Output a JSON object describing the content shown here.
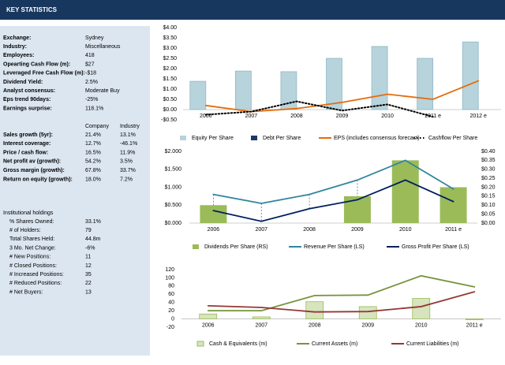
{
  "header": {
    "title": "KEY STATISTICS"
  },
  "stats": [
    {
      "label": "Exchange:",
      "value": "Sydney"
    },
    {
      "label": "Industry:",
      "value": "Miscellaneous"
    },
    {
      "label": "Employees:",
      "value": "418"
    },
    {
      "label": "Opearting Cash Flow (m):",
      "value": "$27"
    },
    {
      "label": "Leveraged Free Cash Flow (m):",
      "value": "-$18"
    },
    {
      "label": "Dividend Yield:",
      "value": "2.5%"
    },
    {
      "label": "Analyst consensus:",
      "value": "Moderate Buy"
    },
    {
      "label": "Eps trend 90days:",
      "value": "-25%"
    },
    {
      "label": "Earnings surprise:",
      "value": "118.1%"
    }
  ],
  "comparison": {
    "columns": [
      "Company",
      "Industry"
    ],
    "rows": [
      {
        "label": "Sales growth (5yr):",
        "company": "21.4%",
        "industry": "13.1%"
      },
      {
        "label": "Interest coverage:",
        "company": "12.7%",
        "industry": "-46.1%"
      },
      {
        "label": "Price / cash flow:",
        "company": "16.5%",
        "industry": "11.9%"
      },
      {
        "label": "Net profit av (growth):",
        "company": "54.2%",
        "industry": "3.5%"
      },
      {
        "label": "Gross margin (growth):",
        "company": "67.8%",
        "industry": "33.7%"
      },
      {
        "label": "Return on equity (growth):",
        "company": "18.0%",
        "industry": "7.2%"
      }
    ]
  },
  "holdings": {
    "title": "Institutional holdings",
    "rows": [
      {
        "label": "% Shares Owned:",
        "value": "33.1%"
      },
      {
        "label": "# of Holders:",
        "value": "79"
      },
      {
        "label": "Total Shares Held:",
        "value": "44.8m"
      },
      {
        "label": "3 Mo. Net Change:",
        "value": "-6%"
      },
      {
        "label": "# New Positions:",
        "value": "11"
      },
      {
        "label": "# Closed Positions:",
        "value": "12"
      },
      {
        "label": "# Increased Positions:",
        "value": "35"
      },
      {
        "label": "# Reduced Positions:",
        "value": "22"
      },
      {
        "label": "# Net Buyers:",
        "value": "13"
      }
    ]
  },
  "chart_data": [
    {
      "type": "combo",
      "categories": [
        "2006",
        "2007",
        "2008",
        "2009",
        "2010",
        "2011 e",
        "2012 e"
      ],
      "ylim": [
        -0.5,
        4
      ],
      "yticks": [
        {
          "value": 4,
          "label": "$4.00"
        },
        {
          "value": 3.5,
          "label": "$3.50"
        },
        {
          "value": 3,
          "label": "$3.00"
        },
        {
          "value": 2.5,
          "label": "$2.50"
        },
        {
          "value": 2,
          "label": "$2.00"
        },
        {
          "value": 1.5,
          "label": "$1.50"
        },
        {
          "value": 1,
          "label": "$1.00"
        },
        {
          "value": 0.5,
          "label": "$0.50"
        },
        {
          "value": 0,
          "label": "$0.00"
        },
        {
          "value": -0.5,
          "label": "-$0.50"
        }
      ],
      "series": [
        {
          "name": "Equity Per Share",
          "type": "bar",
          "color": "#b7d3dc",
          "values": [
            1.38,
            1.88,
            1.85,
            2.5,
            3.08,
            2.5,
            3.3
          ]
        },
        {
          "name": "Debt Per Share",
          "type": "bar",
          "color": "#1f3864",
          "values": [
            null,
            null,
            null,
            null,
            null,
            null,
            null
          ]
        },
        {
          "name": "EPS (includes consensus forecast)",
          "type": "line",
          "color": "#e46c0a",
          "values": [
            0.2,
            -0.1,
            0.05,
            0.35,
            0.75,
            0.5,
            1.4
          ]
        },
        {
          "name": "Cashflow Per Share",
          "type": "line",
          "dash": "dotted",
          "color": "#000000",
          "values": [
            -0.25,
            -0.1,
            0.4,
            -0.05,
            0.25,
            -0.35,
            null
          ]
        }
      ]
    },
    {
      "type": "combo",
      "categories": [
        "2006",
        "2007",
        "2008",
        "2009",
        "2010",
        "2011 e"
      ],
      "ylim": [
        0,
        2
      ],
      "yticks": [
        {
          "value": 2,
          "label": "$2.000"
        },
        {
          "value": 1.5,
          "label": "$1.500"
        },
        {
          "value": 1,
          "label": "$1.000"
        },
        {
          "value": 0.5,
          "label": "$0.500"
        },
        {
          "value": 0,
          "label": "$0.000"
        }
      ],
      "y2lim": [
        0,
        0.4
      ],
      "y2ticks": [
        {
          "value": 0.4,
          "label": "$0.40"
        },
        {
          "value": 0.35,
          "label": "$0.35"
        },
        {
          "value": 0.3,
          "label": "$0.30"
        },
        {
          "value": 0.25,
          "label": "$0.25"
        },
        {
          "value": 0.2,
          "label": "$0.20"
        },
        {
          "value": 0.15,
          "label": "$0.15"
        },
        {
          "value": 0.1,
          "label": "$0.10"
        },
        {
          "value": 0.05,
          "label": "$0.05"
        },
        {
          "value": 0,
          "label": "$0.00"
        }
      ],
      "series": [
        {
          "name": "Dividends Per Share (RS)",
          "type": "bar",
          "axis": "y2",
          "color": "#9bbb59",
          "values": [
            0.1,
            0,
            0,
            0.15,
            0.35,
            0.2
          ]
        },
        {
          "name": "Revenue Per Share (LS)",
          "type": "line",
          "color": "#31859c",
          "values": [
            0.8,
            0.55,
            0.8,
            1.2,
            1.75,
            0.95
          ]
        },
        {
          "name": "Gross Profit Per Share (LS)",
          "type": "line",
          "color": "#002060",
          "values": [
            0.35,
            0.05,
            0.4,
            0.65,
            1.2,
            0.6
          ]
        }
      ]
    },
    {
      "type": "combo",
      "categories": [
        "2006",
        "2007",
        "2008",
        "2009",
        "2010",
        "2011 e"
      ],
      "ylim": [
        -20,
        120
      ],
      "yticks": [
        120,
        100,
        80,
        60,
        40,
        20,
        0,
        -20
      ],
      "series": [
        {
          "name": "Cash & Equivalents (m)",
          "type": "bar",
          "color": "#d7e4bd",
          "values": [
            12,
            5,
            42,
            30,
            50,
            -2
          ]
        },
        {
          "name": "Current Assets (m)",
          "type": "line",
          "color": "#77933c",
          "values": [
            20,
            20,
            57,
            58,
            105,
            78
          ]
        },
        {
          "name": "Current Liabilities (m)",
          "type": "line",
          "color": "#953735",
          "values": [
            32,
            28,
            17,
            18,
            30,
            66
          ]
        }
      ]
    }
  ]
}
